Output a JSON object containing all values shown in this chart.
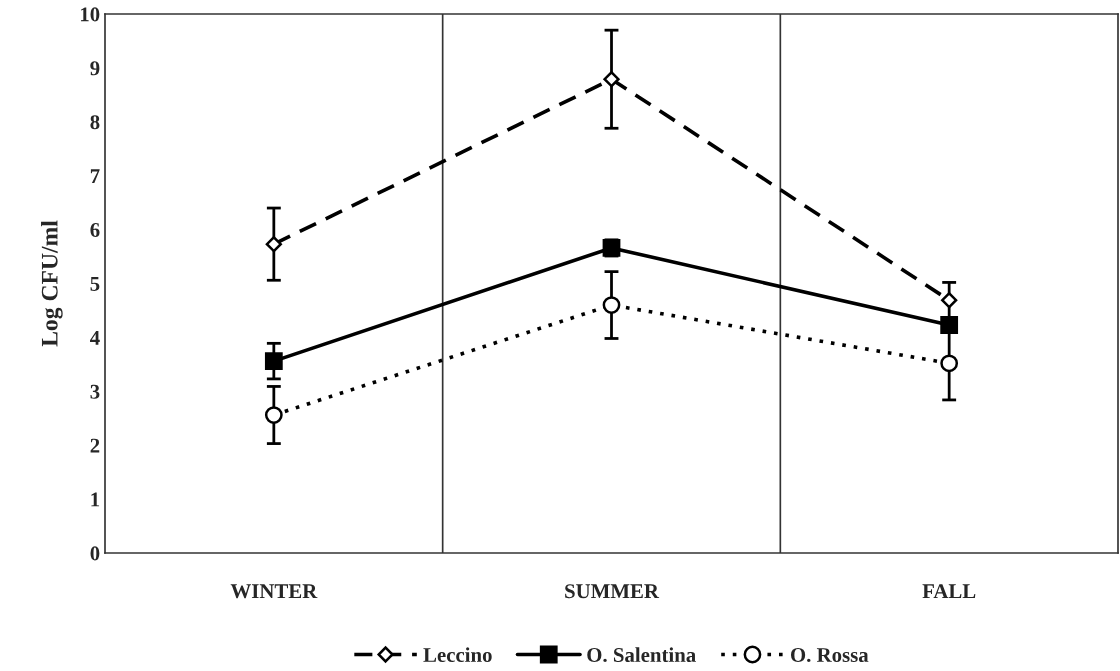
{
  "chart_data": {
    "type": "line",
    "ylabel": "Log CFU/ml",
    "categories": [
      "WINTER",
      "SUMMER",
      "FALL"
    ],
    "series": [
      {
        "name": "Leccino",
        "color": "#000000",
        "values": [
          5.73,
          8.79,
          4.69
        ],
        "errors": [
          0.67,
          0.91,
          0.33
        ],
        "marker": "diamond",
        "line_style": "dashed"
      },
      {
        "name": "O. Salentina",
        "color": "#000000",
        "values": [
          3.56,
          5.66,
          4.23
        ],
        "errors": [
          0.33,
          0.15,
          0.1
        ],
        "marker": "square",
        "line_style": "solid"
      },
      {
        "name": "O. Rossa",
        "color": "#000000",
        "values": [
          2.56,
          4.6,
          3.52
        ],
        "errors": [
          0.53,
          0.62,
          0.68
        ],
        "marker": "circle",
        "line_style": "dotted"
      }
    ],
    "ylim": [
      0,
      10
    ],
    "yticks": [
      0,
      1,
      2,
      3,
      4,
      5,
      6,
      7,
      8,
      9,
      10
    ],
    "grid": false,
    "legend": "bottom"
  }
}
